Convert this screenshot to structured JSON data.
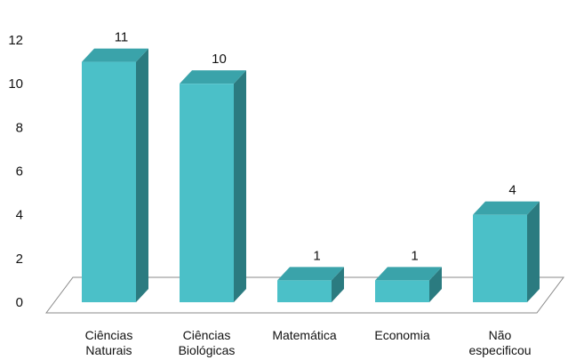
{
  "chart_data": {
    "type": "bar",
    "categories": [
      [
        "Ciências",
        "Naturais"
      ],
      [
        "Ciências",
        "Biológicas"
      ],
      [
        "Matemática"
      ],
      [
        "Economia"
      ],
      [
        "Não",
        "especificou"
      ]
    ],
    "values": [
      11,
      10,
      1,
      1,
      4
    ],
    "data_labels": [
      "11",
      "10",
      "1",
      "1",
      "4"
    ],
    "y_ticks": [
      "0",
      "2",
      "4",
      "6",
      "8",
      "10",
      "12"
    ],
    "ylim": [
      0,
      12
    ],
    "grid": false,
    "legend": false,
    "style": "3d-column",
    "colors": {
      "bar_front": "#4BC0C8",
      "bar_top": "#3AA3AA",
      "bar_side": "#2B7B80",
      "floor": "#888888"
    }
  }
}
